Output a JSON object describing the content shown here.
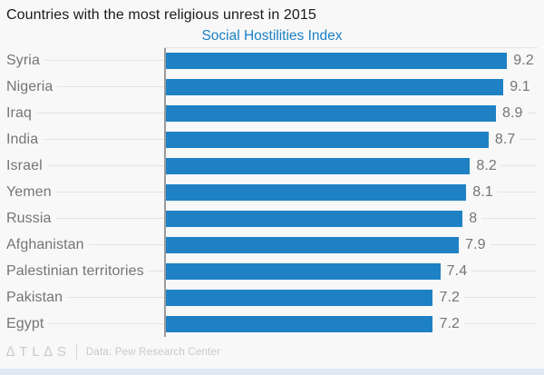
{
  "title": "Countries with the most religious unrest in 2015",
  "subtitle": "Social Hostilities Index",
  "footer": {
    "logo": "∆TL∆S",
    "source": "Data: Pew Research Center"
  },
  "colors": {
    "bar": "#1e81c4",
    "subtitle": "#1b80c4",
    "bottom_strip": "#dfe7f2",
    "axis": "#9b9b9b",
    "label_text": "#757575",
    "background": "#f8f8f8"
  },
  "chart_data": {
    "type": "bar",
    "orientation": "horizontal",
    "title": "Countries with the most religious unrest in 2015",
    "subtitle": "Social Hostilities Index",
    "categories": [
      "Syria",
      "Nigeria",
      "Iraq",
      "India",
      "Israel",
      "Yemen",
      "Russia",
      "Afghanistan",
      "Palestinian territories",
      "Pakistan",
      "Egypt"
    ],
    "values": [
      9.2,
      9.1,
      8.9,
      8.7,
      8.2,
      8.1,
      8,
      7.9,
      7.4,
      7.2,
      7.2
    ],
    "value_labels": [
      "9.2",
      "9.1",
      "8.9",
      "8.7",
      "8.2",
      "8.1",
      "8",
      "7.9",
      "7.4",
      "7.2",
      "7.2"
    ],
    "xlim": [
      0,
      10
    ],
    "grid": "row-leader-lines",
    "legend": "none",
    "source": "Data: Pew Research Center"
  }
}
